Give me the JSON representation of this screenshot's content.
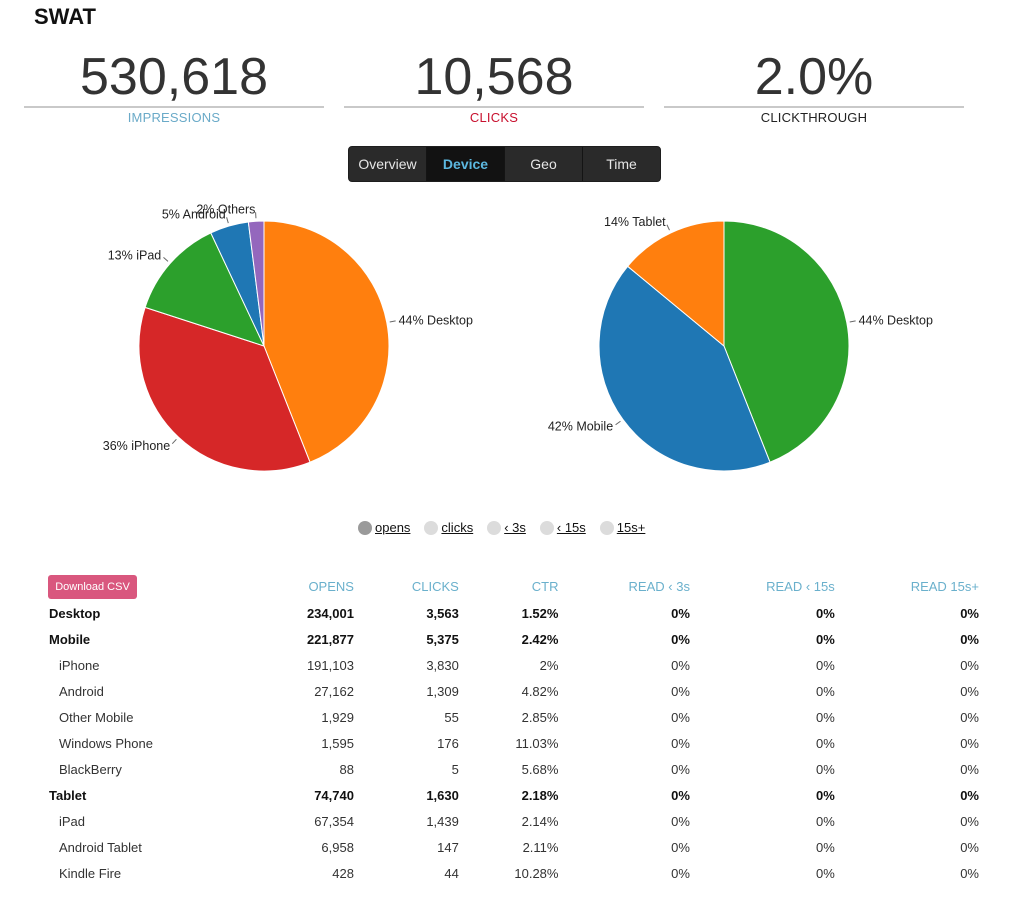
{
  "title": "SWAT",
  "stats": {
    "impressions": {
      "value": "530,618",
      "label": "IMPRESSIONS",
      "color": "#6aaac8"
    },
    "clicks": {
      "value": "10,568",
      "label": "CLICKS",
      "color": "#c8102e"
    },
    "clickthrough": {
      "value": "2.0%",
      "label": "CLICKTHROUGH",
      "color": "#222222"
    }
  },
  "tabs": [
    "Overview",
    "Device",
    "Geo",
    "Time"
  ],
  "active_tab": "Device",
  "chart_data": [
    {
      "type": "pie",
      "slices": [
        {
          "label": "44% Desktop",
          "value": 44,
          "color": "#ff7f0e"
        },
        {
          "label": "36% iPhone",
          "value": 36,
          "color": "#d62728"
        },
        {
          "label": "13% iPad",
          "value": 13,
          "color": "#2ca02c"
        },
        {
          "label": "5% Android",
          "value": 5,
          "color": "#1f77b4"
        },
        {
          "label": "2% Others",
          "value": 2,
          "color": "#9467bd"
        }
      ]
    },
    {
      "type": "pie",
      "slices": [
        {
          "label": "44% Desktop",
          "value": 44,
          "color": "#2ca02c"
        },
        {
          "label": "42% Mobile",
          "value": 42,
          "color": "#1f77b4"
        },
        {
          "label": "14% Tablet",
          "value": 14,
          "color": "#ff7f0e"
        }
      ]
    }
  ],
  "legend": [
    {
      "label": "opens",
      "active": true
    },
    {
      "label": "clicks",
      "active": false
    },
    {
      "label": "‹ 3s",
      "active": false
    },
    {
      "label": "‹ 15s",
      "active": false
    },
    {
      "label": "15s+",
      "active": false
    }
  ],
  "download_label": "Download CSV",
  "table": {
    "headers": [
      "OPENS",
      "CLICKS",
      "CTR",
      "READ ‹ 3s",
      "READ ‹ 15s",
      "READ 15s+"
    ],
    "rows": [
      {
        "name": "Desktop",
        "level": 0,
        "values": [
          "234,001",
          "3,563",
          "1.52%",
          "0%",
          "0%",
          "0%"
        ]
      },
      {
        "name": "Mobile",
        "level": 0,
        "values": [
          "221,877",
          "5,375",
          "2.42%",
          "0%",
          "0%",
          "0%"
        ]
      },
      {
        "name": "iPhone",
        "level": 1,
        "values": [
          "191,103",
          "3,830",
          "2%",
          "0%",
          "0%",
          "0%"
        ]
      },
      {
        "name": "Android",
        "level": 1,
        "values": [
          "27,162",
          "1,309",
          "4.82%",
          "0%",
          "0%",
          "0%"
        ]
      },
      {
        "name": "Other Mobile",
        "level": 1,
        "values": [
          "1,929",
          "55",
          "2.85%",
          "0%",
          "0%",
          "0%"
        ]
      },
      {
        "name": "Windows Phone",
        "level": 1,
        "values": [
          "1,595",
          "176",
          "11.03%",
          "0%",
          "0%",
          "0%"
        ]
      },
      {
        "name": "BlackBerry",
        "level": 1,
        "values": [
          "88",
          "5",
          "5.68%",
          "0%",
          "0%",
          "0%"
        ]
      },
      {
        "name": "Tablet",
        "level": 0,
        "values": [
          "74,740",
          "1,630",
          "2.18%",
          "0%",
          "0%",
          "0%"
        ]
      },
      {
        "name": "iPad",
        "level": 1,
        "values": [
          "67,354",
          "1,439",
          "2.14%",
          "0%",
          "0%",
          "0%"
        ]
      },
      {
        "name": "Android Tablet",
        "level": 1,
        "values": [
          "6,958",
          "147",
          "2.11%",
          "0%",
          "0%",
          "0%"
        ]
      },
      {
        "name": "Kindle Fire",
        "level": 1,
        "values": [
          "428",
          "44",
          "10.28%",
          "0%",
          "0%",
          "0%"
        ]
      }
    ]
  }
}
